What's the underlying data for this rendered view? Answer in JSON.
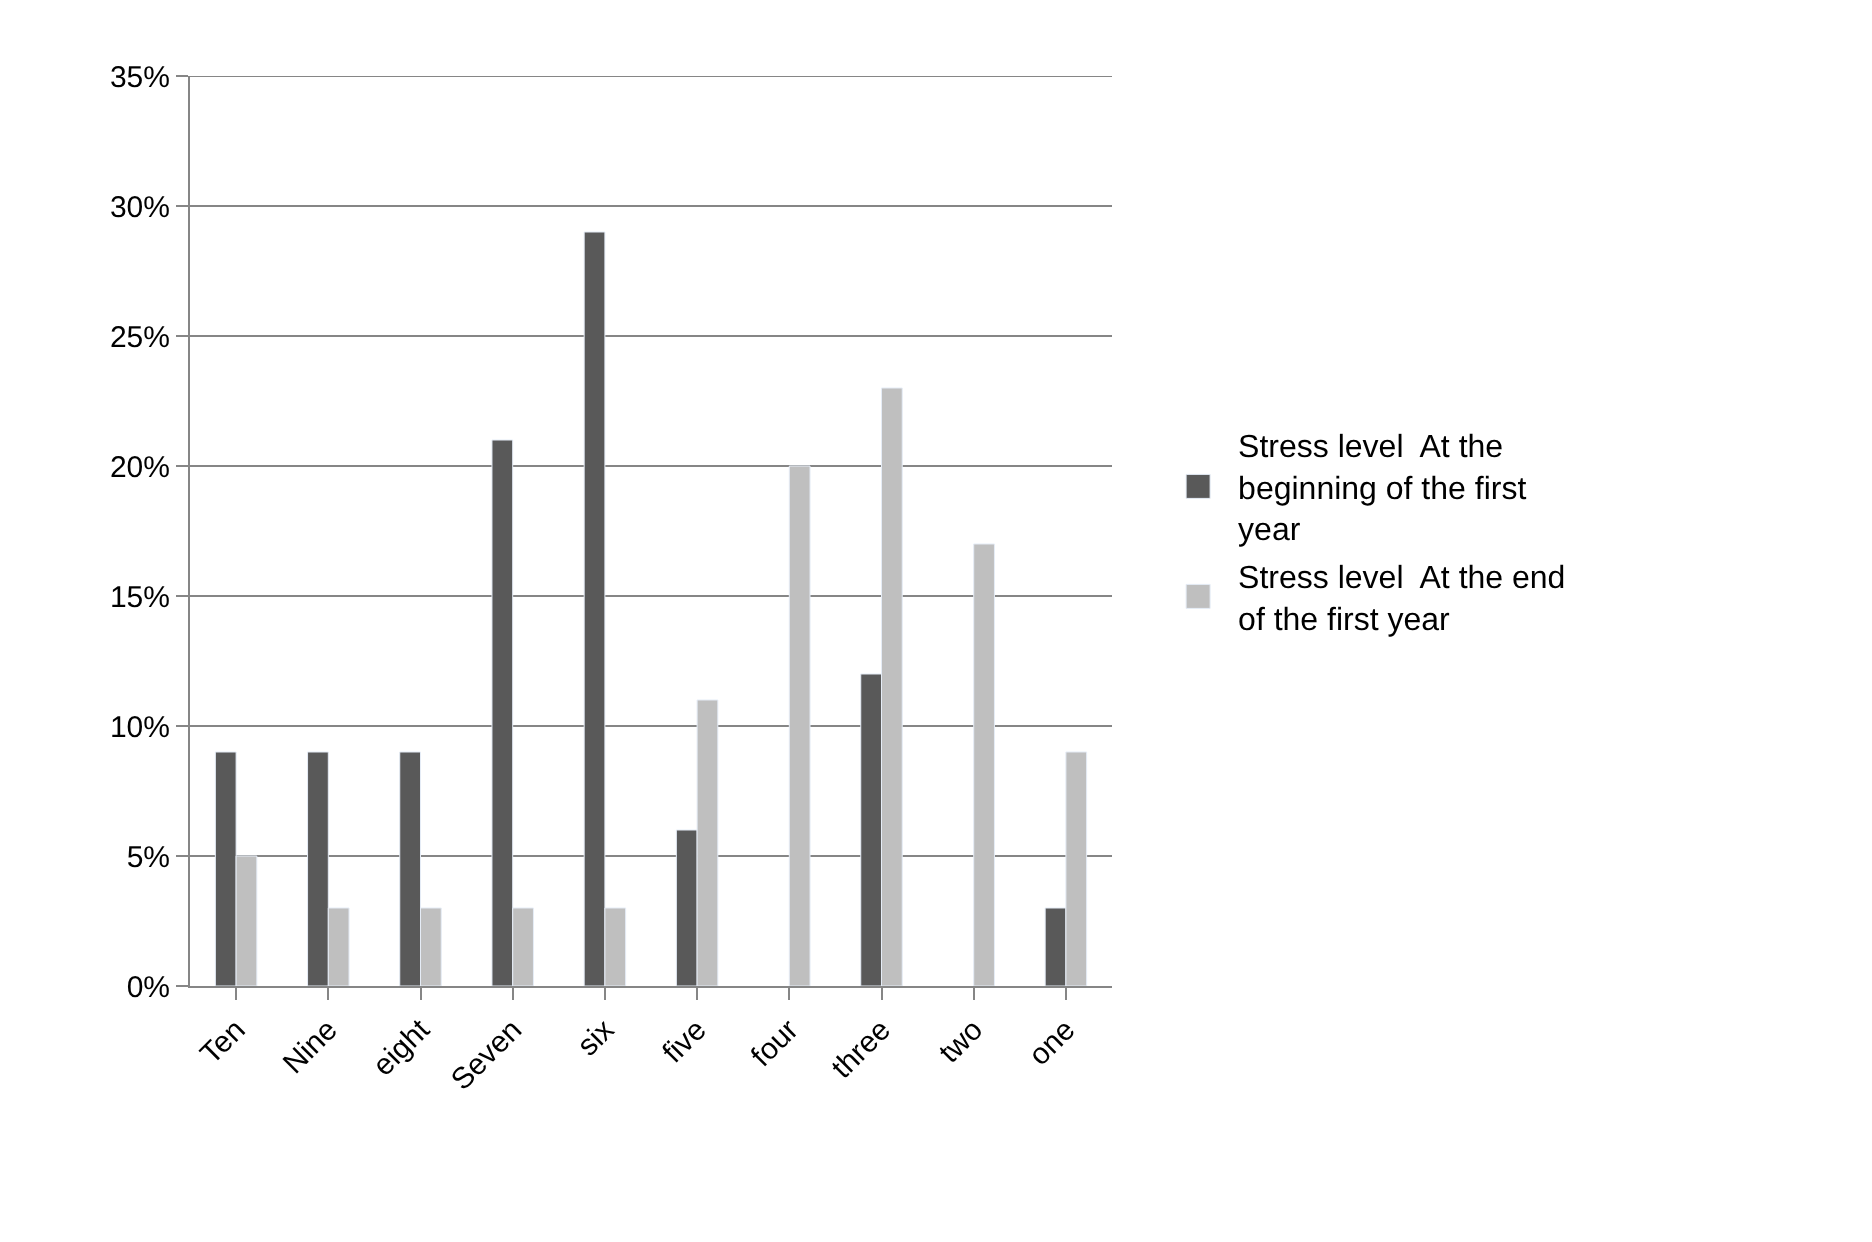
{
  "chart_data": {
    "type": "bar",
    "categories": [
      "Ten",
      "Nine",
      "eight",
      "Seven",
      "six",
      "five",
      "four",
      "three",
      "two",
      "one"
    ],
    "series": [
      {
        "name": "Stress level  At the beginning of the first year",
        "color": "#595959",
        "values": [
          9,
          9,
          9,
          21,
          29,
          6,
          null,
          12,
          null,
          3
        ]
      },
      {
        "name": "Stress level  At the end of the first year",
        "color": "#bfbfbf",
        "values": [
          5,
          3,
          3,
          3,
          3,
          11,
          20,
          23,
          17,
          9
        ]
      }
    ],
    "ylim": [
      0,
      35
    ],
    "yticks": [
      {
        "value": 0,
        "label": "0%"
      },
      {
        "value": 5,
        "label": "5%"
      },
      {
        "value": 10,
        "label": "10%"
      },
      {
        "value": 15,
        "label": "15%"
      },
      {
        "value": 20,
        "label": "20%"
      },
      {
        "value": 25,
        "label": "25%"
      },
      {
        "value": 30,
        "label": "30%"
      },
      {
        "value": 35,
        "label": "35%"
      }
    ],
    "grid": "y",
    "legend": "right"
  }
}
